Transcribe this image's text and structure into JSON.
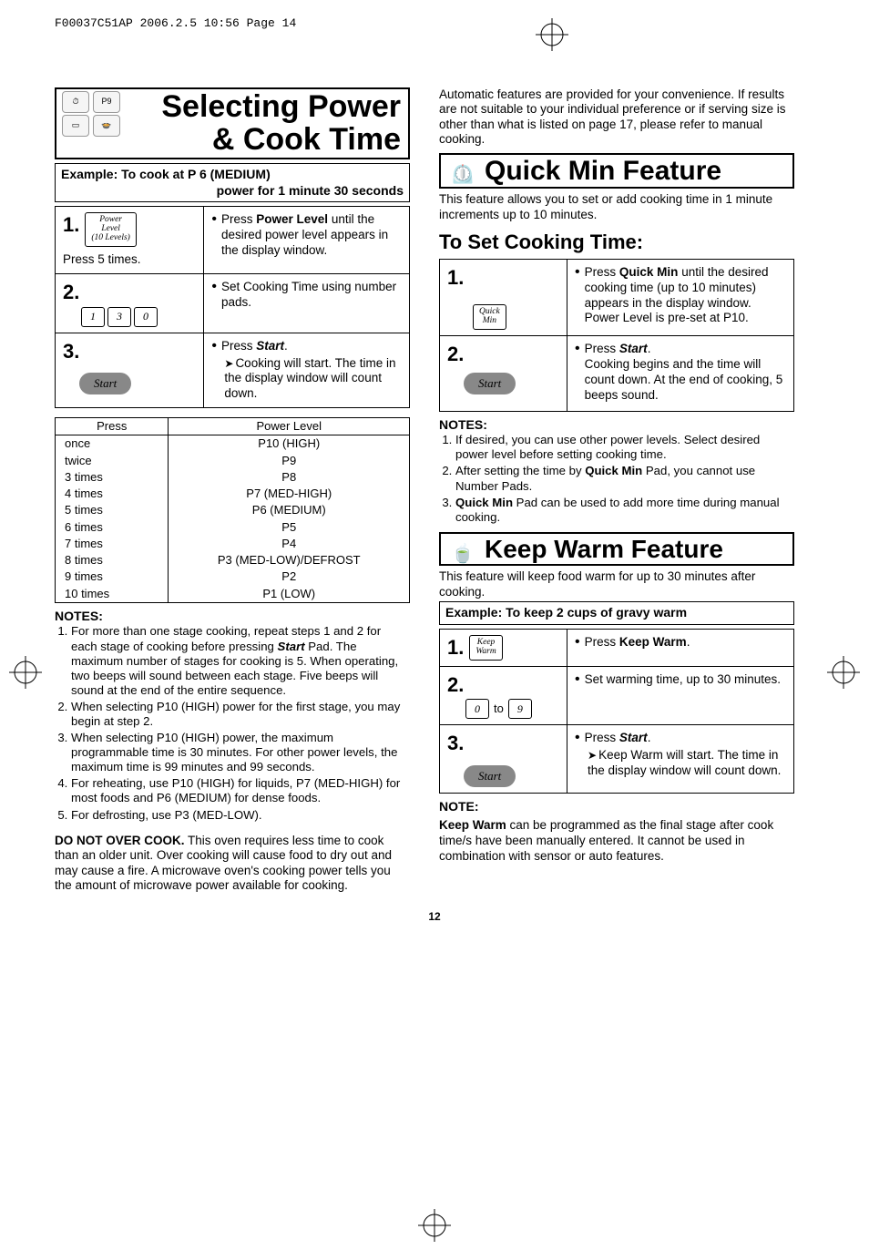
{
  "file_header": "F00037C51AP  2006.2.5  10:56  Page 14",
  "page_number": "12",
  "left": {
    "title1": "Selecting Power",
    "title2": "& Cook Time",
    "example_bar_l1": "Example: To cook at P 6 (MEDIUM)",
    "example_bar_l2": "power for 1 minute 30 seconds",
    "steps": [
      {
        "num": "1.",
        "pad_lines": "Power\nLevel\n(10 Levels)",
        "sub_label": "Press 5 times.",
        "r_action": "Press",
        "r_action_bold": "Power Level",
        "r_cont": "until the desired power level appears in the display window."
      },
      {
        "num": "2.",
        "pads": [
          "1",
          "3",
          "0"
        ],
        "r_action": "Set Cooking Time using number pads."
      },
      {
        "num": "3.",
        "start_label": "Start",
        "r_action": "Press",
        "r_bold_it": "Start",
        "r_period": ".",
        "r_arrow": "Cooking will start. The time in the display window will count down."
      }
    ],
    "power_table": {
      "hdr_press": "Press",
      "hdr_level": "Power Level",
      "rows": [
        [
          "once",
          "P10 (HIGH)"
        ],
        [
          "twice",
          "P9"
        ],
        [
          "3 times",
          "P8"
        ],
        [
          "4 times",
          "P7 (MED-HIGH)"
        ],
        [
          "5 times",
          "P6 (MEDIUM)"
        ],
        [
          "6 times",
          "P5"
        ],
        [
          "7 times",
          "P4"
        ],
        [
          "8 times",
          "P3 (MED-LOW)/DEFROST"
        ],
        [
          "9 times",
          "P2"
        ],
        [
          "10 times",
          "P1 (LOW)"
        ]
      ]
    },
    "notes_hdr": "NOTES:",
    "notes": [
      "For more than one stage cooking, repeat steps 1 and 2 for each stage of cooking before pressing <b><i>Start</i></b> Pad. The maximum number of stages for cooking is 5. When operating, two beeps will sound between each stage. Five beeps will sound at the end of the entire sequence.",
      "When selecting P10 (HIGH) power for the first stage, you may begin at step 2.",
      "When selecting P10 (HIGH) power, the maximum programmable time is 30 minutes. For other power levels, the maximum time is 99 minutes and 99 seconds.",
      "For reheating, use P10 (HIGH) for liquids, P7 (MED-HIGH) for most foods and P6 (MEDIUM) for dense foods.",
      "For defrosting, use P3 (MED-LOW)."
    ],
    "do_not_overcook": "<b>DO NOT OVER COOK.</b> This oven requires less time to cook than an older unit. Over cooking will cause food to dry out and may cause a fire. A microwave oven's cooking power tells you the amount of microwave power available for cooking."
  },
  "right": {
    "auto_intro": "Automatic features are provided for your convenience. If results are not suitable to your individual preference or if serving size is other than what is listed on page 17, please refer to manual cooking.",
    "quickmin_title": "Quick Min Feature",
    "quickmin_intro": "This feature allows you to set or add cooking time in 1 minute increments up to 10 minutes.",
    "set_hdr": "To Set Cooking Time:",
    "qm_steps": [
      {
        "num": "1.",
        "pad_lines": "Quick\nMin",
        "r_action": "Press",
        "r_action_bold": "Quick Min",
        "r_cont": "until the desired cooking time (up to 10 minutes) appears in the display window. Power Level is pre-set at P10."
      },
      {
        "num": "2.",
        "start_label": "Start",
        "r_action": "Press",
        "r_bold_it": "Start",
        "r_period": ".",
        "r_plain": "Cooking begins and the time will count down. At the end of cooking, 5 beeps sound."
      }
    ],
    "qm_notes_hdr": "NOTES:",
    "qm_notes": [
      "If desired, you can use other power levels. Select desired power level before setting cooking time.",
      "After setting the time by <b>Quick Min</b> Pad, you cannot use Number Pads.",
      "<b>Quick Min</b> Pad can be used to add more time during manual cooking."
    ],
    "keepwarm_title": "Keep Warm Feature",
    "keepwarm_intro": "This feature will keep food warm for up to 30 minutes after cooking.",
    "keepwarm_example": "Example: To keep 2 cups of gravy warm",
    "kw_steps": [
      {
        "num": "1.",
        "pad_lines": "Keep\nWarm",
        "r_action": "Press",
        "r_action_bold": "Keep Warm",
        "r_period": "."
      },
      {
        "num": "2.",
        "pads": [
          "0",
          "9"
        ],
        "to_label": "to",
        "r_action": "Set warming time, up to 30 minutes."
      },
      {
        "num": "3.",
        "start_label": "Start",
        "r_action": "Press",
        "r_bold_it": "Start",
        "r_period": ".",
        "r_arrow": "Keep Warm will start. The time in the display window will count down."
      }
    ],
    "kw_note_hdr": "NOTE:",
    "kw_note": "<b>Keep Warm</b> can be programmed as the final stage after cook time/s have been manually entered. It cannot be used in combination with sensor or auto features."
  }
}
